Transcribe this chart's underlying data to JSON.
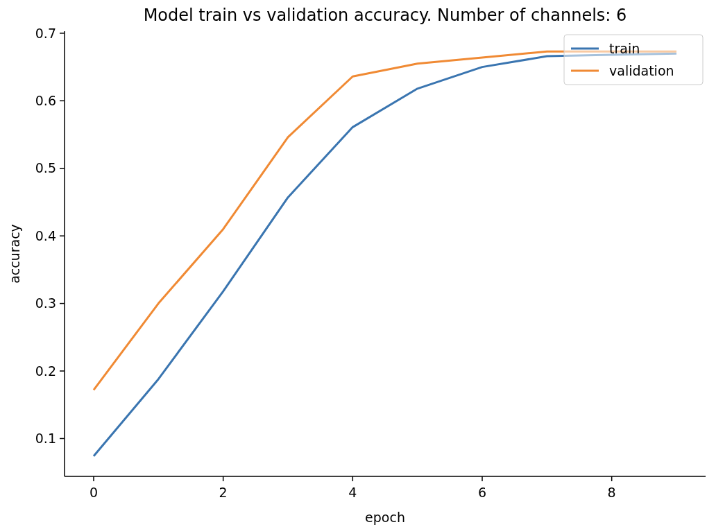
{
  "chart_data": {
    "type": "line",
    "title": "Model train vs validation accuracy. Number of channels: 6",
    "xlabel": "epoch",
    "ylabel": "accuracy",
    "x": [
      0,
      1,
      2,
      3,
      4,
      5,
      6,
      7,
      8,
      9
    ],
    "series": [
      {
        "name": "train",
        "color": "#3a75b0",
        "values": [
          0.074,
          0.188,
          0.318,
          0.457,
          0.561,
          0.618,
          0.65,
          0.666,
          0.668,
          0.67
        ]
      },
      {
        "name": "validation",
        "color": "#f08a34",
        "values": [
          0.172,
          0.3,
          0.41,
          0.546,
          0.636,
          0.655,
          0.664,
          0.673,
          0.673,
          0.673
        ]
      }
    ],
    "xlim": [
      -0.45,
      9.45
    ],
    "xticks": [
      0,
      2,
      4,
      6,
      8
    ],
    "ylim": [
      0.044,
      0.703
    ],
    "yticks": [
      0.1,
      0.2,
      0.3,
      0.4,
      0.5,
      0.6,
      0.7
    ],
    "legend": "top right",
    "grid": false,
    "marker": "none",
    "line_style": "solid"
  }
}
